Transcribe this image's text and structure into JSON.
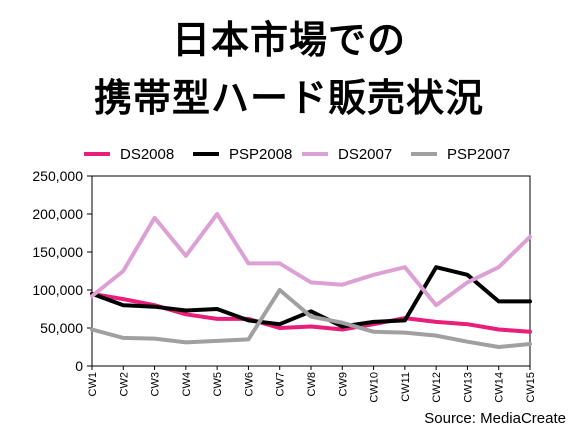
{
  "title_line1": "日本市場での",
  "title_line2": "携帯型ハード販売状況",
  "source": "Source: MediaCreate",
  "chart_data": {
    "type": "line",
    "categories": [
      "CW1",
      "CW2",
      "CW3",
      "CW4",
      "CW5",
      "CW6",
      "CW7",
      "CW8",
      "CW9",
      "CW10",
      "CW11",
      "CW12",
      "CW13",
      "CW14",
      "CW15"
    ],
    "y_ticks": [
      "0",
      "50,000",
      "100,000",
      "150,000",
      "200,000",
      "250,000"
    ],
    "ylim": [
      0,
      250000
    ],
    "grid": false,
    "legend_position": "top",
    "series": [
      {
        "name": "DS2008",
        "color": "#e91e7a",
        "values": [
          95000,
          88000,
          80000,
          68000,
          62000,
          62000,
          50000,
          52000,
          48000,
          55000,
          63000,
          58000,
          55000,
          48000,
          45000
        ]
      },
      {
        "name": "PSP2008",
        "color": "#000000",
        "values": [
          95000,
          80000,
          78000,
          73000,
          75000,
          60000,
          55000,
          72000,
          52000,
          58000,
          60000,
          130000,
          120000,
          85000,
          85000
        ]
      },
      {
        "name": "DS2007",
        "color": "#dda0d4",
        "values": [
          92000,
          125000,
          195000,
          145000,
          200000,
          135000,
          135000,
          110000,
          107000,
          120000,
          130000,
          80000,
          110000,
          130000,
          170000
        ]
      },
      {
        "name": "PSP2007",
        "color": "#a0a0a0",
        "values": [
          48000,
          37000,
          36000,
          31000,
          33000,
          35000,
          100000,
          65000,
          57000,
          45000,
          44000,
          40000,
          32000,
          25000,
          29000
        ]
      }
    ]
  }
}
